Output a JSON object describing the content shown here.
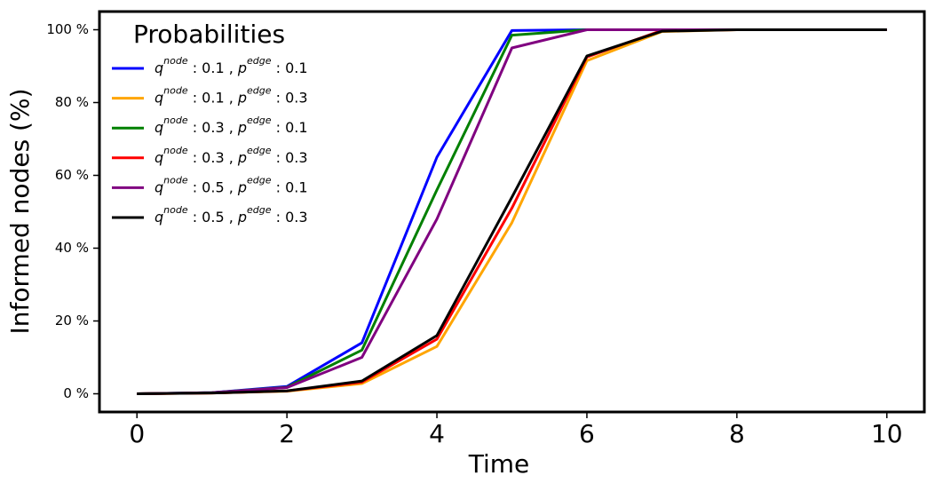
{
  "chart_data": {
    "type": "line",
    "x_label": "Time",
    "y_label": "Informed nodes (%)",
    "legend_title": "Probabilities",
    "legend_position": "upper left",
    "x": [
      0,
      1,
      2,
      3,
      4,
      5,
      6,
      7,
      8,
      9,
      10
    ],
    "series": [
      {
        "name": [
          "q",
          "node",
          " : 0.1 , ",
          "p",
          "edge",
          " : 0.1"
        ],
        "color": "#0000ff",
        "values": [
          0,
          0.3,
          2,
          14,
          65,
          99.8,
          100,
          100,
          100,
          100,
          100
        ]
      },
      {
        "name": [
          "q",
          "node",
          " : 0.1 , ",
          "p",
          "edge",
          " : 0.3"
        ],
        "color": "#ffa500",
        "values": [
          0,
          0.2,
          0.7,
          2.8,
          13,
          47,
          91.5,
          99.5,
          100,
          100,
          100
        ]
      },
      {
        "name": [
          "q",
          "node",
          " : 0.3 , ",
          "p",
          "edge",
          " : 0.1"
        ],
        "color": "#008000",
        "values": [
          0,
          0.3,
          1.8,
          12,
          56,
          98.5,
          100,
          100,
          100,
          100,
          100
        ]
      },
      {
        "name": [
          "q",
          "node",
          " : 0.3 , ",
          "p",
          "edge",
          " : 0.3"
        ],
        "color": "#ff0000",
        "values": [
          0,
          0.2,
          0.8,
          3.2,
          15,
          51,
          92.5,
          99.8,
          100,
          100,
          100
        ]
      },
      {
        "name": [
          "q",
          "node",
          " : 0.5 , ",
          "p",
          "edge",
          " : 0.1"
        ],
        "color": "#800080",
        "values": [
          0,
          0.3,
          1.7,
          10,
          48,
          95,
          100,
          100,
          100,
          100,
          100
        ]
      },
      {
        "name": [
          "q",
          "node",
          " : 0.5 , ",
          "p",
          "edge",
          " : 0.3"
        ],
        "color": "#000000",
        "values": [
          0,
          0.2,
          0.8,
          3.5,
          16,
          54,
          92.8,
          99.6,
          100,
          100,
          100
        ]
      }
    ],
    "xlim": [
      -0.5,
      10.5
    ],
    "xticks": [
      0,
      2,
      4,
      6,
      8,
      10
    ],
    "ylim": [
      -5,
      105
    ],
    "yticks": [
      {
        "value": 0,
        "label": "0 %"
      },
      {
        "value": 20,
        "label": "20 %"
      },
      {
        "value": 40,
        "label": "40 %"
      },
      {
        "value": 60,
        "label": "60 %"
      },
      {
        "value": 80,
        "label": "80 %"
      },
      {
        "value": 100,
        "label": "100 %"
      }
    ],
    "grid": false
  }
}
